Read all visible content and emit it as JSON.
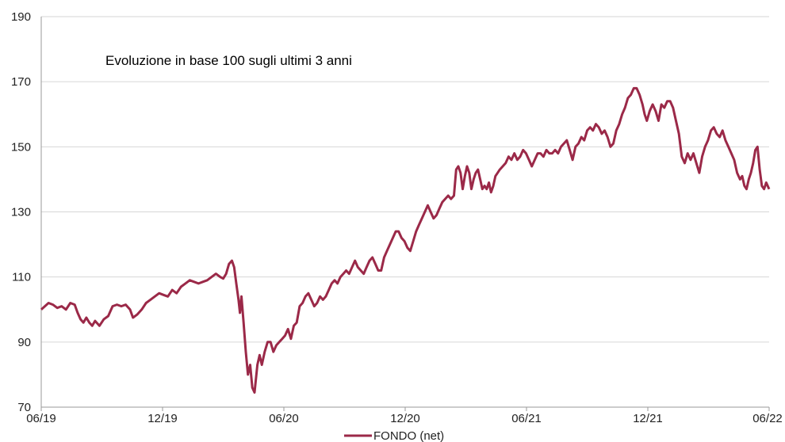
{
  "chart_data": {
    "type": "line",
    "title": "Evoluzione in base 100 sugli ultimi 3 anni",
    "xlabel": "",
    "ylabel": "",
    "ylim": [
      70,
      190
    ],
    "yticks": [
      70,
      90,
      110,
      130,
      150,
      170,
      190
    ],
    "xticks": [
      "06/19",
      "12/19",
      "06/20",
      "12/20",
      "06/21",
      "12/21",
      "06/22"
    ],
    "grid": "horizontal",
    "legend": "bottom-center",
    "series": [
      {
        "name": "FONDO (net)",
        "color": "#9b2948",
        "points": [
          [
            "06/19",
            100
          ],
          [
            "06/19+0.03",
            101
          ],
          [
            "06/19+0.06",
            102
          ],
          [
            "06/19+0.09",
            101
          ],
          [
            "06/19+0.12",
            100.5
          ],
          [
            "06/19+0.16",
            101
          ],
          [
            "06/19+0.19",
            101
          ],
          [
            "06/19+0.22",
            100.5
          ],
          [
            "06/19+0.25",
            101.5
          ],
          [
            "06/19+0.28",
            102
          ],
          [
            "06/19+0.31",
            101
          ],
          [
            "06/19+0.34",
            99
          ],
          [
            "06/19+0.38",
            97
          ],
          [
            "06/19+0.41",
            95
          ],
          [
            "06/19+0.44",
            96
          ]
        ]
      }
    ],
    "data": {
      "x_start": "2019-06",
      "x_end": "2022-06",
      "t": [
        0,
        0.01,
        0.02,
        0.03,
        0.045,
        0.06,
        0.075,
        0.09,
        0.105,
        0.12,
        0.135,
        0.15,
        0.165,
        0.18,
        0.195,
        0.21,
        0.225,
        0.24,
        0.255,
        0.27,
        0.285,
        0.3,
        0.315,
        0.33,
        0.345,
        0.36,
        0.375,
        0.39,
        0.405,
        0.42,
        0.435,
        0.45,
        0.465,
        0.48,
        0.495,
        0.5,
        0.505,
        0.51,
        0.515,
        0.52,
        0.525,
        0.53,
        0.535,
        0.54,
        0.545,
        0.55,
        0.555,
        0.56,
        0.565,
        0.57,
        0.575,
        0.58,
        0.585,
        0.59,
        0.6,
        0.61,
        0.62,
        0.63,
        0.64,
        0.65,
        0.66,
        0.67,
        0.68,
        0.69,
        0.7,
        0.71,
        0.72,
        0.73,
        0.74,
        0.75,
        0.76,
        0.77,
        0.78,
        0.79,
        0.8,
        0.81,
        0.82,
        0.83,
        0.84,
        0.85,
        0.86,
        0.87,
        0.88,
        0.89,
        0.9,
        0.91,
        0.92,
        0.93,
        0.94,
        0.95,
        0.96,
        0.97,
        0.98,
        0.99,
        1.0
      ]
    }
  },
  "legend": {
    "label": "FONDO (net)"
  }
}
